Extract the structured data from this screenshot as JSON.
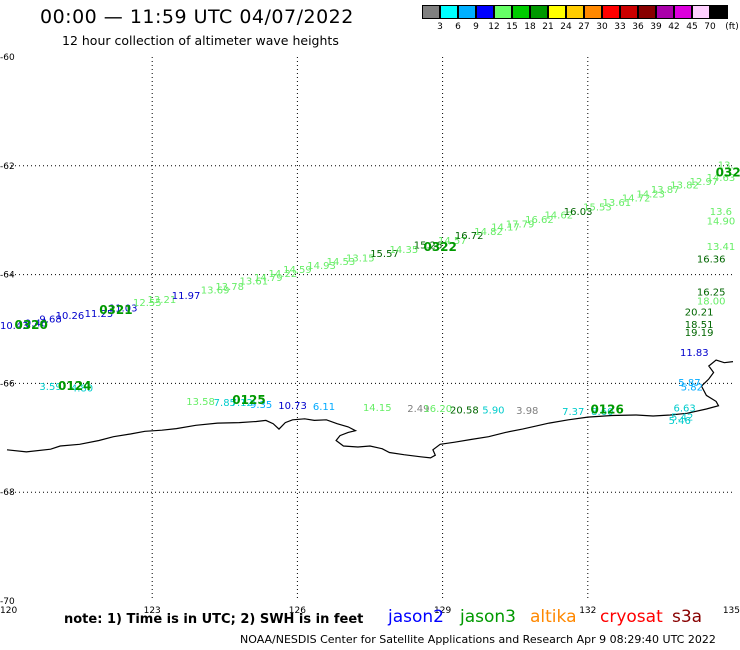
{
  "header": {
    "title": "00:00 — 11:59 UTC 04/07/2022",
    "subtitle": "12 hour collection of altimeter wave heights"
  },
  "colorbar": {
    "colors": [
      "#808080",
      "#00ffff",
      "#00b0ff",
      "#0000ff",
      "#66ff66",
      "#00cc00",
      "#009900",
      "#ffff00",
      "#ffcc00",
      "#ff8800",
      "#ff0000",
      "#cc0000",
      "#880000",
      "#aa00aa",
      "#dd00dd",
      "#ffd0ff",
      "#000000"
    ],
    "labels": [
      "3",
      "6",
      "9",
      "12",
      "15",
      "18",
      "21",
      "24",
      "27",
      "30",
      "33",
      "36",
      "39",
      "42",
      "45",
      "70",
      "(ft)"
    ]
  },
  "axes": {
    "lon_ticks": [
      120,
      123,
      126,
      129,
      132,
      135
    ],
    "lon_labels": [
      "120",
      "123",
      "126",
      "129",
      "132",
      "135"
    ],
    "lat_ticks": [
      -60,
      -62,
      -64,
      -66,
      -68,
      -70
    ],
    "lat_labels": [
      "-60",
      "-62",
      "-64",
      "-66",
      "-68",
      "-70"
    ]
  },
  "labels": [
    {
      "lon": 120.15,
      "lat": -65.0,
      "text": "10.43",
      "color": "#0000cc"
    },
    {
      "lon": 120.6,
      "lat": -64.95,
      "text": "9.46",
      "color": "#0000cc"
    },
    {
      "lon": 120.9,
      "lat": -64.88,
      "text": "9.68",
      "color": "#0000cc"
    },
    {
      "lon": 121.3,
      "lat": -64.82,
      "text": "10.26",
      "color": "#0000cc"
    },
    {
      "lon": 121.9,
      "lat": -64.78,
      "text": "11.25",
      "color": "#0000cc"
    },
    {
      "lon": 122.4,
      "lat": -64.68,
      "text": "11.03",
      "color": "#0000cc"
    },
    {
      "lon": 122.9,
      "lat": -64.58,
      "text": "12.55",
      "color": "#66ee66"
    },
    {
      "lon": 123.2,
      "lat": -64.52,
      "text": "13.21",
      "color": "#66ee66"
    },
    {
      "lon": 123.7,
      "lat": -64.45,
      "text": "11.97",
      "color": "#0000cc"
    },
    {
      "lon": 124.3,
      "lat": -64.35,
      "text": "13.69",
      "color": "#66ee66"
    },
    {
      "lon": 124.6,
      "lat": -64.28,
      "text": "13.78",
      "color": "#66ee66"
    },
    {
      "lon": 125.1,
      "lat": -64.18,
      "text": "13.61",
      "color": "#66ee66"
    },
    {
      "lon": 125.4,
      "lat": -64.12,
      "text": "14.79",
      "color": "#66ee66"
    },
    {
      "lon": 125.7,
      "lat": -64.04,
      "text": "14.22",
      "color": "#66ee66"
    },
    {
      "lon": 126.0,
      "lat": -63.97,
      "text": "14.59",
      "color": "#66ee66"
    },
    {
      "lon": 126.5,
      "lat": -63.9,
      "text": "14.93",
      "color": "#66ee66"
    },
    {
      "lon": 126.9,
      "lat": -63.82,
      "text": "14.53",
      "color": "#66ee66"
    },
    {
      "lon": 127.3,
      "lat": -63.76,
      "text": "13.15",
      "color": "#66ee66"
    },
    {
      "lon": 127.8,
      "lat": -63.68,
      "text": "15.57",
      "color": "#006600"
    },
    {
      "lon": 128.2,
      "lat": -63.6,
      "text": "14.35",
      "color": "#66ee66"
    },
    {
      "lon": 128.7,
      "lat": -63.52,
      "text": "15.26",
      "color": "#006600"
    },
    {
      "lon": 129.2,
      "lat": -63.44,
      "text": "14.57",
      "color": "#66ee66"
    },
    {
      "lon": 129.55,
      "lat": -63.35,
      "text": "16.72",
      "color": "#006600"
    },
    {
      "lon": 129.95,
      "lat": -63.27,
      "text": "14.82",
      "color": "#66ee66"
    },
    {
      "lon": 130.3,
      "lat": -63.19,
      "text": "14.17",
      "color": "#66ee66"
    },
    {
      "lon": 130.6,
      "lat": -63.13,
      "text": "17.79",
      "color": "#66ee66"
    },
    {
      "lon": 131.0,
      "lat": -63.05,
      "text": "16.62",
      "color": "#66ee66"
    },
    {
      "lon": 131.4,
      "lat": -62.97,
      "text": "14.62",
      "color": "#66ee66"
    },
    {
      "lon": 131.8,
      "lat": -62.9,
      "text": "16.03",
      "color": "#006600"
    },
    {
      "lon": 132.2,
      "lat": -62.82,
      "text": "15.53",
      "color": "#66ee66"
    },
    {
      "lon": 132.6,
      "lat": -62.74,
      "text": "13.61",
      "color": "#66ee66"
    },
    {
      "lon": 133.0,
      "lat": -62.66,
      "text": "14.72",
      "color": "#66ee66"
    },
    {
      "lon": 133.3,
      "lat": -62.58,
      "text": "14.23",
      "color": "#66ee66"
    },
    {
      "lon": 133.6,
      "lat": -62.5,
      "text": "13.87",
      "color": "#66ee66"
    },
    {
      "lon": 134.0,
      "lat": -62.42,
      "text": "13.82",
      "color": "#66ee66"
    },
    {
      "lon": 134.4,
      "lat": -62.35,
      "text": "12.97",
      "color": "#66ee66"
    },
    {
      "lon": 134.75,
      "lat": -62.28,
      "text": "14.63",
      "color": "#66ee66"
    },
    {
      "lon": 134.85,
      "lat": -62.05,
      "text": "13.",
      "color": "#66ee66"
    },
    {
      "lon": 134.75,
      "lat": -62.9,
      "text": "13.6",
      "color": "#66ee66"
    },
    {
      "lon": 134.75,
      "lat": -63.08,
      "text": "14.90",
      "color": "#66ee66"
    },
    {
      "lon": 134.75,
      "lat": -63.55,
      "text": "13.41",
      "color": "#66ee66"
    },
    {
      "lon": 134.55,
      "lat": -63.78,
      "text": "16.36",
      "color": "#006600"
    },
    {
      "lon": 134.55,
      "lat": -64.38,
      "text": "16.25",
      "color": "#006600"
    },
    {
      "lon": 134.55,
      "lat": -64.55,
      "text": "18.00",
      "color": "#66ee66"
    },
    {
      "lon": 134.3,
      "lat": -64.75,
      "text": "20.21",
      "color": "#006600"
    },
    {
      "lon": 134.3,
      "lat": -64.98,
      "text": "18.51",
      "color": "#006600"
    },
    {
      "lon": 134.3,
      "lat": -65.13,
      "text": "19.19",
      "color": "#006600"
    },
    {
      "lon": 134.2,
      "lat": -65.5,
      "text": "11.83",
      "color": "#0000cc"
    },
    {
      "lon": 134.1,
      "lat": -66.05,
      "text": "5.87",
      "color": "#00aaff"
    },
    {
      "lon": 134.15,
      "lat": -66.13,
      "text": "5.82",
      "color": "#00aaff"
    },
    {
      "lon": 134.0,
      "lat": -66.52,
      "text": "6.63",
      "color": "#00cccc"
    },
    {
      "lon": 133.95,
      "lat": -66.68,
      "text": "5.42",
      "color": "#00cccc"
    },
    {
      "lon": 133.9,
      "lat": -66.75,
      "text": "5.46",
      "color": "#00cccc"
    },
    {
      "lon": 120.9,
      "lat": -66.12,
      "text": "3.59",
      "color": "#00cccc"
    },
    {
      "lon": 121.55,
      "lat": -66.15,
      "text": "4.80",
      "color": "#00cccc"
    },
    {
      "lon": 124.0,
      "lat": -66.4,
      "text": "13.58",
      "color": "#66ee66"
    },
    {
      "lon": 124.5,
      "lat": -66.42,
      "text": "7.85",
      "color": "#00cccc"
    },
    {
      "lon": 124.85,
      "lat": -66.42,
      "text": "7.12",
      "color": "#00cccc"
    },
    {
      "lon": 125.25,
      "lat": -66.45,
      "text": "9.35",
      "color": "#00aaff"
    },
    {
      "lon": 125.9,
      "lat": -66.47,
      "text": "10.73",
      "color": "#0000cc"
    },
    {
      "lon": 126.55,
      "lat": -66.49,
      "text": "6.11",
      "color": "#00aaff"
    },
    {
      "lon": 127.65,
      "lat": -66.51,
      "text": "14.15",
      "color": "#66ee66"
    },
    {
      "lon": 128.5,
      "lat": -66.53,
      "text": "2.49",
      "color": "#808080"
    },
    {
      "lon": 128.9,
      "lat": -66.53,
      "text": "16.20",
      "color": "#66ee66"
    },
    {
      "lon": 129.45,
      "lat": -66.55,
      "text": "20.58",
      "color": "#006600"
    },
    {
      "lon": 130.05,
      "lat": -66.55,
      "text": "5.90",
      "color": "#00cccc"
    },
    {
      "lon": 130.75,
      "lat": -66.56,
      "text": "3.98",
      "color": "#808080"
    },
    {
      "lon": 131.7,
      "lat": -66.58,
      "text": "7.37",
      "color": "#00cccc"
    },
    {
      "lon": 132.3,
      "lat": -66.58,
      "text": "8.60",
      "color": "#00cccc"
    }
  ],
  "passes": [
    {
      "lon": 120.5,
      "lat": -65.0,
      "text": "0320",
      "color": "#009900"
    },
    {
      "lon": 122.25,
      "lat": -64.72,
      "text": "0321",
      "color": "#009900"
    },
    {
      "lon": 128.95,
      "lat": -63.57,
      "text": "0322",
      "color": "#009900"
    },
    {
      "lon": 121.4,
      "lat": -66.12,
      "text": "0124",
      "color": "#009900"
    },
    {
      "lon": 125.0,
      "lat": -66.38,
      "text": "0125",
      "color": "#009900"
    },
    {
      "lon": 132.4,
      "lat": -66.55,
      "text": "0126",
      "color": "#009900"
    },
    {
      "lon": 134.9,
      "lat": -62.2,
      "text": "032",
      "color": "#009900"
    }
  ],
  "coastline": [
    [
      120,
      -67.22
    ],
    [
      120.4,
      -67.26
    ],
    [
      120.9,
      -67.21
    ],
    [
      121.1,
      -67.15
    ],
    [
      121.5,
      -67.12
    ],
    [
      121.9,
      -67.05
    ],
    [
      122.2,
      -66.98
    ],
    [
      122.55,
      -66.93
    ],
    [
      122.85,
      -66.88
    ],
    [
      123.2,
      -66.86
    ],
    [
      123.5,
      -66.83
    ],
    [
      123.9,
      -66.77
    ],
    [
      124.35,
      -66.73
    ],
    [
      124.8,
      -66.72
    ],
    [
      125.15,
      -66.7
    ],
    [
      125.35,
      -66.68
    ],
    [
      125.5,
      -66.74
    ],
    [
      125.62,
      -66.84
    ],
    [
      125.75,
      -66.72
    ],
    [
      125.9,
      -66.67
    ],
    [
      126.15,
      -66.65
    ],
    [
      126.35,
      -66.68
    ],
    [
      126.6,
      -66.67
    ],
    [
      126.82,
      -66.74
    ],
    [
      127.05,
      -66.8
    ],
    [
      127.2,
      -66.87
    ],
    [
      127.05,
      -66.9
    ],
    [
      126.88,
      -66.96
    ],
    [
      126.8,
      -67.05
    ],
    [
      126.95,
      -67.15
    ],
    [
      127.25,
      -67.17
    ],
    [
      127.5,
      -67.15
    ],
    [
      127.75,
      -67.2
    ],
    [
      127.9,
      -67.27
    ],
    [
      128.2,
      -67.31
    ],
    [
      128.55,
      -67.35
    ],
    [
      128.75,
      -67.37
    ],
    [
      128.85,
      -67.32
    ],
    [
      128.8,
      -67.22
    ],
    [
      128.95,
      -67.12
    ],
    [
      129.25,
      -67.08
    ],
    [
      129.6,
      -67.03
    ],
    [
      129.95,
      -66.98
    ],
    [
      130.3,
      -66.9
    ],
    [
      130.65,
      -66.84
    ],
    [
      130.95,
      -66.78
    ],
    [
      131.2,
      -66.73
    ],
    [
      131.6,
      -66.67
    ],
    [
      132.0,
      -66.62
    ],
    [
      132.5,
      -66.59
    ],
    [
      133.0,
      -66.58
    ],
    [
      133.35,
      -66.6
    ],
    [
      133.7,
      -66.58
    ],
    [
      134.05,
      -66.55
    ],
    [
      134.45,
      -66.47
    ],
    [
      134.7,
      -66.41
    ],
    [
      134.65,
      -66.33
    ],
    [
      134.45,
      -66.22
    ],
    [
      134.35,
      -66.05
    ],
    [
      134.5,
      -65.92
    ],
    [
      134.6,
      -65.8
    ],
    [
      134.5,
      -65.68
    ],
    [
      134.65,
      -65.57
    ],
    [
      134.82,
      -65.62
    ],
    [
      135,
      -65.6
    ]
  ],
  "footer": {
    "note": "note: 1) Time is in UTC; 2) SWH is in feet",
    "legend": [
      {
        "name": "jason2",
        "color": "#0000ff"
      },
      {
        "name": "jason3",
        "color": "#009900"
      },
      {
        "name": "altika",
        "color": "#ff8800"
      },
      {
        "name": "cryosat",
        "color": "#ff0000"
      },
      {
        "name": "s3a",
        "color": "#880000"
      }
    ],
    "credit": "NOAA/NESDIS Center for Satellite Applications and Research    Apr  9 08:29:40 UTC 2022"
  }
}
